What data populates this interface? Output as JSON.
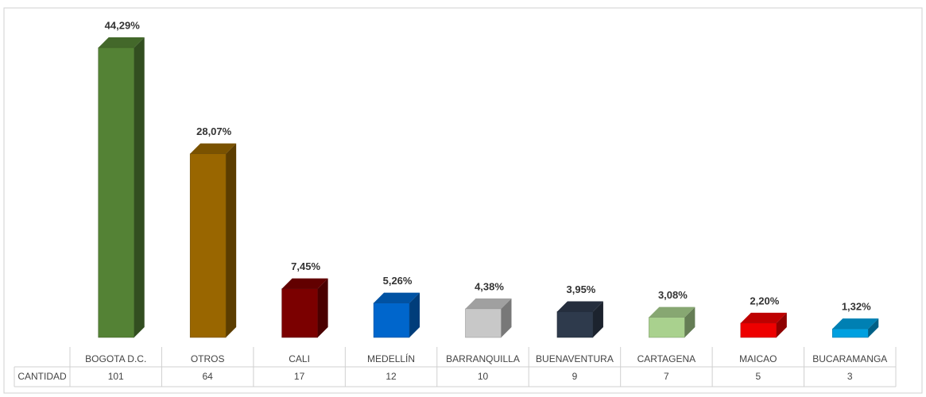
{
  "chart_data": {
    "type": "bar",
    "categories": [
      "BOGOTA D.C.",
      "OTROS",
      "CALI",
      "MEDELLÍN",
      "BARRANQUILLA",
      "BUENAVENTURA",
      "CARTAGENA",
      "MAICAO",
      "BUCARAMANGA"
    ],
    "values": [
      44.29,
      28.07,
      7.45,
      5.26,
      4.38,
      3.95,
      3.08,
      2.2,
      1.32
    ],
    "value_labels": [
      "44,29%",
      "28,07%",
      "7,45%",
      "5,26%",
      "4,38%",
      "3,95%",
      "3,08%",
      "2,20%",
      "1,32%"
    ],
    "colors": [
      "#548235",
      "#996600",
      "#7b0000",
      "#0066cc",
      "#c8c8c8",
      "#2e3a4c",
      "#a9d18e",
      "#ee0000",
      "#00a0e0"
    ],
    "table": {
      "row_label": "CANTIDAD",
      "values": [
        101,
        64,
        17,
        12,
        10,
        9,
        7,
        5,
        3
      ]
    }
  }
}
